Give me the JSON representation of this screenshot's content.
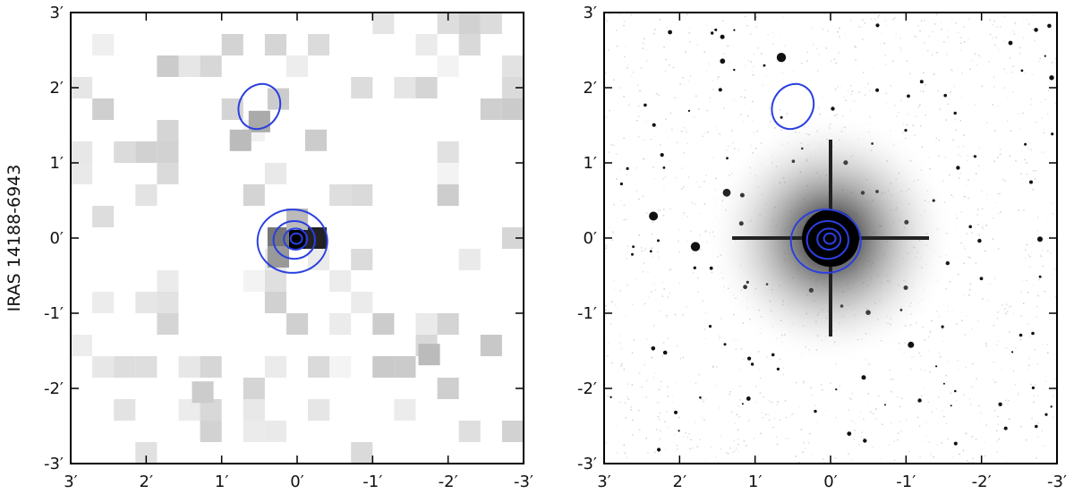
{
  "figure": {
    "ylabel": "IRAS 14188-6943",
    "contour_color": "#2b3fe0",
    "axis_color": "#000000"
  },
  "chart_data": [
    {
      "type": "heatmap",
      "panel": "left",
      "x_ticks": [
        "3′",
        "2′",
        "1′",
        "0′",
        "-1′",
        "-2′",
        "-3′"
      ],
      "y_ticks": [
        "3′",
        "2′",
        "1′",
        "0′",
        "-1′",
        "-2′",
        "-3′"
      ],
      "x_values": [
        3,
        2,
        1,
        0,
        -1,
        -2,
        -3
      ],
      "y_values": [
        3,
        2,
        1,
        0,
        -1,
        -2,
        -3
      ],
      "xlim": [
        3,
        -3
      ],
      "ylim": [
        -3,
        3
      ],
      "grid": false,
      "sources": [
        {
          "x": 0.0,
          "y": 0.0,
          "contour_radii": [
            0.07,
            0.14,
            0.25,
            0.42
          ]
        },
        {
          "x": 0.5,
          "y": 1.75,
          "contour_radii": [
            0.28
          ]
        }
      ]
    },
    {
      "type": "heatmap",
      "panel": "right",
      "x_ticks": [
        "3′",
        "2′",
        "1′",
        "0′",
        "-1′",
        "-2′",
        "-3′"
      ],
      "y_ticks": [
        "3′",
        "2′",
        "1′",
        "0′",
        "-1′",
        "-2′",
        "-3′"
      ],
      "x_values": [
        3,
        2,
        1,
        0,
        -1,
        -2,
        -3
      ],
      "y_values": [
        3,
        2,
        1,
        0,
        -1,
        -2,
        -3
      ],
      "xlim": [
        3,
        -3
      ],
      "ylim": [
        -3,
        3
      ],
      "grid": false,
      "sources": [
        {
          "x": 0.0,
          "y": 0.0,
          "contour_radii": [
            0.07,
            0.14,
            0.25,
            0.42
          ]
        },
        {
          "x": 0.5,
          "y": 1.75,
          "contour_radii": [
            0.28
          ]
        }
      ]
    }
  ]
}
